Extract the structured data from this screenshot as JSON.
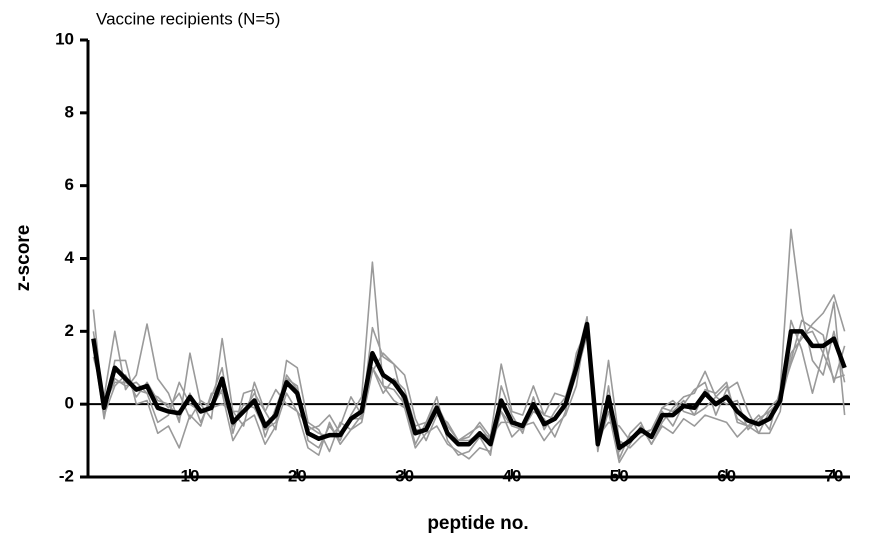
{
  "chart_data": {
    "type": "line",
    "title": "Vaccine recipients (N=5)",
    "xlabel": "peptide no.",
    "ylabel": "z-score",
    "x": [
      1,
      2,
      3,
      4,
      5,
      6,
      7,
      8,
      9,
      10,
      11,
      12,
      13,
      14,
      15,
      16,
      17,
      18,
      19,
      20,
      21,
      22,
      23,
      24,
      25,
      26,
      27,
      28,
      29,
      30,
      31,
      32,
      33,
      34,
      35,
      36,
      37,
      38,
      39,
      40,
      41,
      42,
      43,
      44,
      45,
      46,
      47,
      48,
      49,
      50,
      51,
      52,
      53,
      54,
      55,
      56,
      57,
      58,
      59,
      60,
      61,
      62,
      63,
      64,
      65,
      66,
      67,
      68,
      69,
      70,
      71
    ],
    "series": [
      {
        "color": "#9a9a9a",
        "values": [
          2.6,
          -0.3,
          0.5,
          0.8,
          0.2,
          0.6,
          0.1,
          0.0,
          -0.4,
          0.3,
          -0.5,
          0.2,
          1.0,
          -0.8,
          0.3,
          0.4,
          -0.9,
          -0.1,
          0.7,
          0.5,
          -1.0,
          -1.2,
          -0.6,
          -1.0,
          -0.3,
          0.2,
          3.9,
          0.5,
          0.4,
          0.0,
          -1.1,
          -0.5,
          0.2,
          -1.0,
          -1.4,
          -1.3,
          -0.9,
          -1.4,
          0.5,
          -0.3,
          -0.8,
          0.2,
          -0.7,
          -0.2,
          0.2,
          1.2,
          2.4,
          -1.3,
          0.5,
          -1.5,
          -0.8,
          -0.5,
          -1.1,
          -0.5,
          -0.1,
          0.2,
          0.3,
          0.9,
          0.2,
          0.5,
          -0.4,
          -0.6,
          -0.3,
          -0.7,
          0.4,
          4.8,
          2.5,
          1.2,
          0.8,
          2.0,
          0.6
        ]
      },
      {
        "color": "#9a9a9a",
        "values": [
          1.3,
          0.2,
          2.0,
          0.4,
          0.8,
          2.2,
          0.7,
          0.3,
          -0.5,
          1.4,
          0.0,
          -0.4,
          1.8,
          -0.2,
          -0.6,
          0.6,
          -0.2,
          -0.7,
          1.2,
          1.0,
          -0.5,
          -0.7,
          -1.3,
          -0.5,
          -0.7,
          -0.3,
          2.1,
          1.3,
          1.1,
          0.8,
          -0.4,
          -1.0,
          -0.3,
          -0.5,
          -1.0,
          -0.9,
          -0.5,
          -0.9,
          1.1,
          -0.2,
          -0.3,
          0.5,
          -0.3,
          0.3,
          0.2,
          0.8,
          1.9,
          -0.9,
          1.2,
          -1.0,
          -1.2,
          -0.9,
          -0.7,
          -0.2,
          -0.6,
          0.0,
          0.4,
          0.6,
          -0.3,
          0.4,
          0.6,
          -0.2,
          -0.8,
          -0.2,
          0.1,
          1.4,
          1.8,
          2.2,
          2.5,
          3.0,
          2.0
        ]
      },
      {
        "color": "#9a9a9a",
        "values": [
          1.6,
          -0.4,
          1.2,
          1.2,
          0.0,
          0.1,
          -0.8,
          -0.6,
          -1.2,
          -0.3,
          -0.6,
          0.3,
          0.3,
          -1.0,
          -0.5,
          -0.3,
          -1.1,
          -0.6,
          0.3,
          -0.2,
          -1.2,
          -1.4,
          -0.5,
          -1.1,
          -0.7,
          -0.5,
          0.9,
          1.4,
          1.1,
          -0.1,
          -1.2,
          -0.8,
          -0.6,
          -1.1,
          -1.3,
          -1.5,
          -1.2,
          -1.3,
          -0.2,
          -0.9,
          -0.6,
          -0.5,
          -1.0,
          -0.6,
          -0.3,
          0.5,
          2.3,
          -1.2,
          -0.2,
          -1.6,
          -1.1,
          -0.6,
          -1.1,
          -0.6,
          -0.8,
          -0.4,
          -0.6,
          -0.3,
          -0.4,
          -0.5,
          -0.9,
          -0.6,
          -0.8,
          -0.8,
          -0.2,
          2.3,
          1.5,
          0.3,
          1.4,
          2.8,
          -0.3
        ]
      },
      {
        "color": "#9a9a9a",
        "values": [
          1.5,
          0.0,
          0.7,
          0.5,
          0.6,
          0.3,
          0.2,
          -0.1,
          0.3,
          -0.4,
          0.1,
          -0.1,
          0.4,
          -0.6,
          0.0,
          -0.1,
          -0.7,
          -0.5,
          0.8,
          0.4,
          -0.7,
          -0.6,
          -0.3,
          -0.8,
          -0.4,
          -0.4,
          1.0,
          0.3,
          0.7,
          0.4,
          -0.6,
          -0.5,
          0.0,
          -0.6,
          -1.0,
          -0.8,
          -0.6,
          -1.0,
          -0.2,
          -0.6,
          -0.7,
          -0.2,
          -0.4,
          -0.9,
          -0.2,
          1.4,
          2.1,
          -1.1,
          0.0,
          -1.3,
          -0.9,
          -0.8,
          -0.7,
          -0.1,
          -0.2,
          0.1,
          -0.3,
          -0.1,
          0.2,
          0.0,
          0.1,
          -0.7,
          -0.4,
          -0.2,
          0.0,
          1.2,
          2.3,
          2.1,
          1.9,
          0.6,
          1.6
        ]
      },
      {
        "color": "#9a9a9a",
        "values": [
          2.0,
          0.0,
          0.6,
          0.6,
          0.4,
          0.3,
          -0.5,
          -0.3,
          0.6,
          0.0,
          -0.2,
          -0.1,
          0.0,
          -0.2,
          -0.2,
          0.3,
          -0.2,
          0.4,
          0.0,
          -0.2,
          -0.6,
          -0.8,
          -0.9,
          -0.6,
          0.2,
          -0.3,
          1.0,
          0.5,
          0.1,
          -0.1,
          -0.7,
          -0.7,
          -0.2,
          -0.8,
          -1.0,
          -1.0,
          -0.8,
          -0.9,
          -0.5,
          -0.5,
          -0.6,
          0.0,
          -0.3,
          -0.4,
          -0.1,
          0.8,
          2.3,
          -0.9,
          -0.5,
          -0.6,
          -1.0,
          -0.7,
          -0.9,
          -0.1,
          0.1,
          -0.2,
          -0.3,
          0.4,
          0.3,
          0.6,
          -0.5,
          -0.6,
          -0.5,
          -0.1,
          0.2,
          1.1,
          1.9,
          2.0,
          1.4,
          0.7,
          0.8
        ]
      },
      {
        "color": "#000000",
        "values": [
          1.8,
          -0.1,
          1.0,
          0.7,
          0.4,
          0.5,
          -0.1,
          -0.2,
          -0.25,
          0.2,
          -0.2,
          -0.1,
          0.7,
          -0.5,
          -0.2,
          0.1,
          -0.6,
          -0.3,
          0.6,
          0.3,
          -0.8,
          -0.95,
          -0.85,
          -0.85,
          -0.4,
          -0.2,
          1.4,
          0.8,
          0.6,
          0.2,
          -0.8,
          -0.7,
          -0.1,
          -0.8,
          -1.1,
          -1.1,
          -0.8,
          -1.1,
          0.1,
          -0.5,
          -0.6,
          0.0,
          -0.55,
          -0.4,
          0.0,
          1.0,
          2.2,
          -1.1,
          0.2,
          -1.2,
          -1.0,
          -0.7,
          -0.9,
          -0.3,
          -0.3,
          -0.05,
          -0.1,
          0.3,
          0.0,
          0.2,
          -0.2,
          -0.45,
          -0.55,
          -0.4,
          0.1,
          2.0,
          2.0,
          1.6,
          1.6,
          1.8,
          1.0
        ]
      }
    ],
    "xlim": [
      0.5,
      71.5
    ],
    "xticks": [
      10,
      20,
      30,
      40,
      50,
      60,
      70
    ],
    "ylim": [
      -2,
      10
    ],
    "yticks": [
      -2,
      0,
      2,
      4,
      6,
      8,
      10
    ]
  }
}
